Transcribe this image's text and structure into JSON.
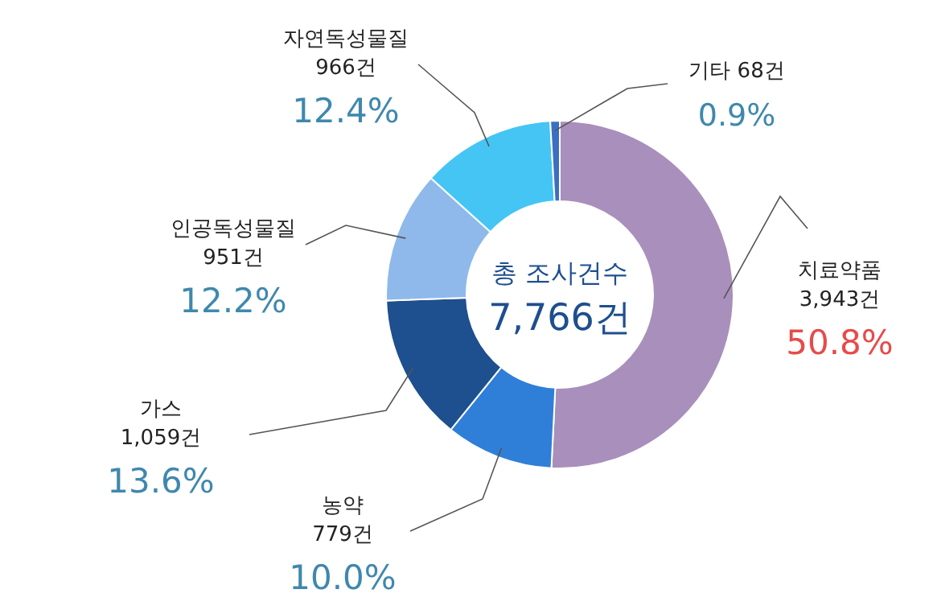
{
  "chart_data": {
    "type": "donut",
    "categories": [
      "치료약품",
      "농약",
      "가스",
      "인공독성물질",
      "자연독성물질",
      "기타"
    ],
    "values": [
      3943,
      779,
      1059,
      951,
      966,
      68
    ],
    "colors": [
      "#a98fbc",
      "#2f7fd8",
      "#1e4f8e",
      "#8fb9ea",
      "#45c5f4",
      "#3b6fc2"
    ],
    "value_labels": [
      "3,943건\n50.8%",
      "779건\n10.0%",
      "1,059건\n13.6%",
      "951건\n12.2%",
      "966건\n12.4%",
      "68건\n0.9%"
    ],
    "annotations": [
      "총 조사건수",
      "7,766건"
    ]
  }
}
